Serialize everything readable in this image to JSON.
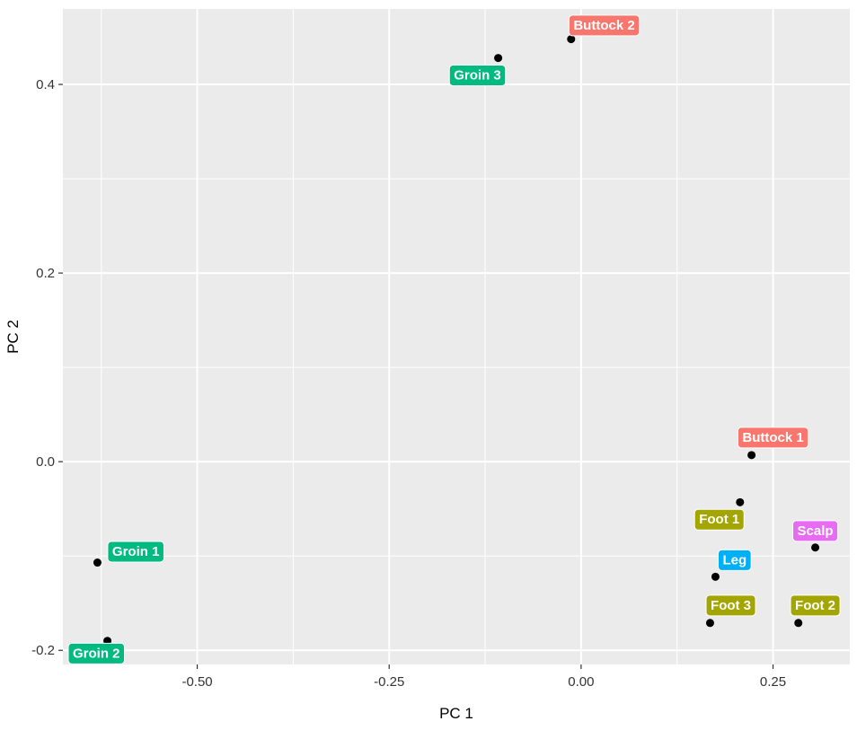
{
  "chart_data": {
    "type": "scatter",
    "title": "",
    "xlabel": "PC 1",
    "ylabel": "PC 2",
    "xlim": [
      -0.675,
      0.35
    ],
    "ylim": [
      -0.215,
      0.48
    ],
    "grid": true,
    "x_ticks": [
      {
        "value": -0.5,
        "label": "-0.50"
      },
      {
        "value": -0.25,
        "label": "-0.25"
      },
      {
        "value": 0.0,
        "label": "0.00"
      },
      {
        "value": 0.25,
        "label": "0.25"
      }
    ],
    "y_ticks": [
      {
        "value": -0.2,
        "label": "-0.2"
      },
      {
        "value": 0.0,
        "label": "0.0"
      },
      {
        "value": 0.2,
        "label": "0.2"
      },
      {
        "value": 0.4,
        "label": "0.4"
      }
    ],
    "group_colors": {
      "Buttock": "#f8766d",
      "Groin": "#00ba7f",
      "Foot": "#a3a500",
      "Leg": "#00b0f6",
      "Scalp": "#e76bf3"
    },
    "points": [
      {
        "label": "Buttock 2",
        "group": "Buttock",
        "x": -0.013,
        "y": 0.448,
        "label_x": 0.03,
        "label_y": 0.463
      },
      {
        "label": "Groin 3",
        "group": "Groin",
        "x": -0.108,
        "y": 0.428,
        "label_x": -0.135,
        "label_y": 0.41
      },
      {
        "label": "Buttock 1",
        "group": "Buttock",
        "x": 0.222,
        "y": 0.007,
        "label_x": 0.25,
        "label_y": 0.026
      },
      {
        "label": "Foot 1",
        "group": "Foot",
        "x": 0.207,
        "y": -0.043,
        "label_x": 0.18,
        "label_y": -0.061
      },
      {
        "label": "Scalp",
        "group": "Scalp",
        "x": 0.305,
        "y": -0.091,
        "label_x": 0.305,
        "label_y": -0.073
      },
      {
        "label": "Leg",
        "group": "Leg",
        "x": 0.175,
        "y": -0.122,
        "label_x": 0.2,
        "label_y": -0.104
      },
      {
        "label": "Foot 3",
        "group": "Foot",
        "x": 0.168,
        "y": -0.171,
        "label_x": 0.195,
        "label_y": -0.152
      },
      {
        "label": "Foot 2",
        "group": "Foot",
        "x": 0.283,
        "y": -0.171,
        "label_x": 0.305,
        "label_y": -0.152
      },
      {
        "label": "Groin 1",
        "group": "Groin",
        "x": -0.63,
        "y": -0.107,
        "label_x": -0.58,
        "label_y": -0.095
      },
      {
        "label": "Groin 2",
        "group": "Groin",
        "x": -0.617,
        "y": -0.19,
        "label_x": -0.637,
        "label_y": -0.203
      }
    ]
  }
}
